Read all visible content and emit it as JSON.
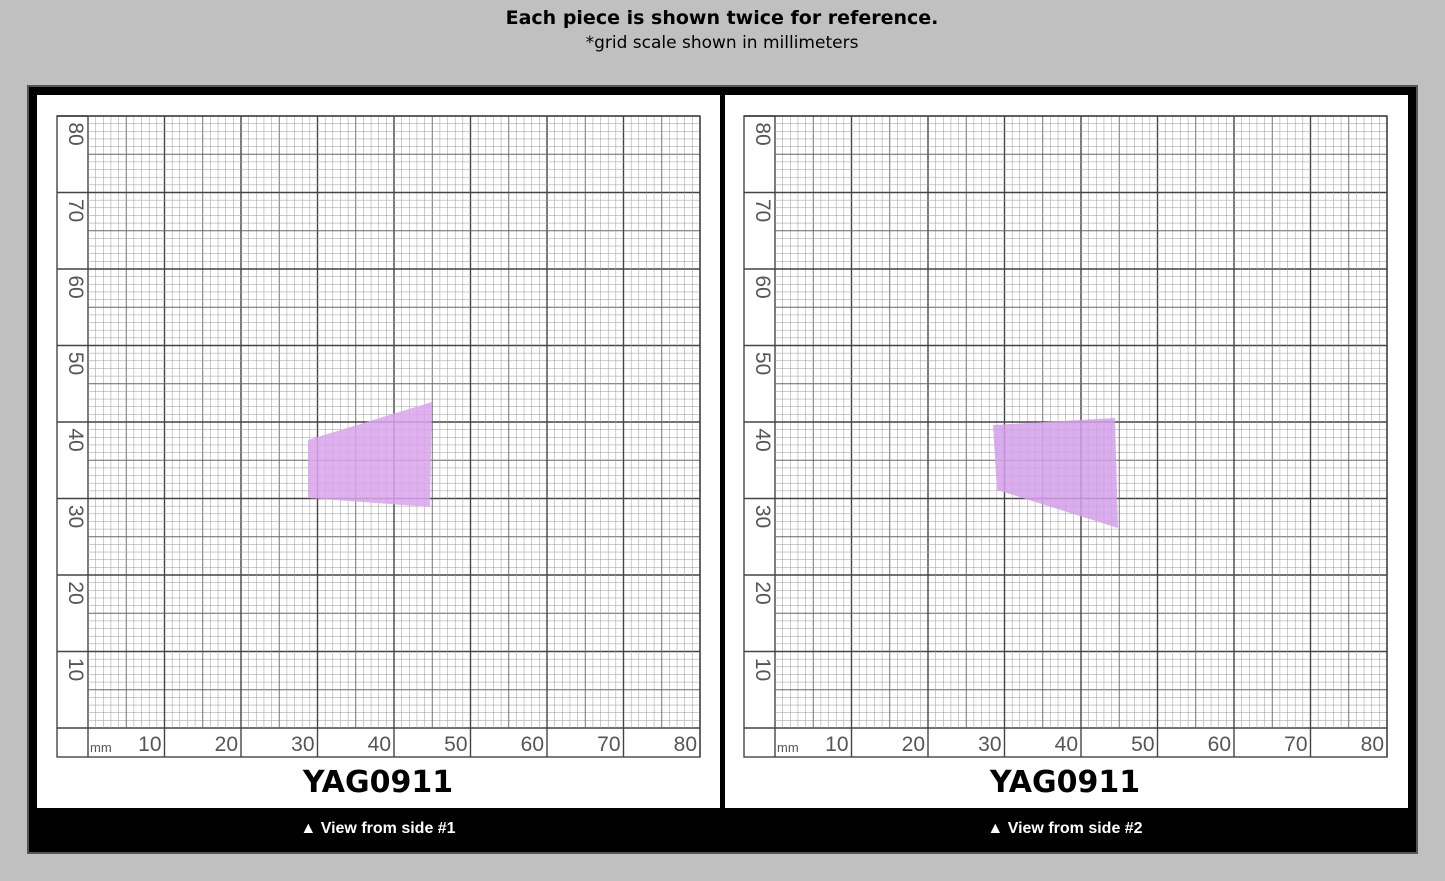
{
  "header": {
    "title": "Each piece is shown twice for reference.",
    "subtitle": "*grid scale shown in millimeters"
  },
  "panels": [
    {
      "unit": "mm",
      "x_labels": [
        10,
        20,
        30,
        40,
        50,
        60,
        70,
        80
      ],
      "y_labels": [
        10,
        20,
        30,
        40,
        50,
        60,
        70,
        80
      ],
      "code": "YAG0911",
      "caption": "▲ View from side #1"
    },
    {
      "unit": "mm",
      "x_labels": [
        10,
        20,
        30,
        40,
        50,
        60,
        70,
        80
      ],
      "y_labels": [
        10,
        20,
        30,
        40,
        50,
        60,
        70,
        80
      ],
      "code": "YAG0911",
      "caption": "▲ View from side #2"
    }
  ]
}
